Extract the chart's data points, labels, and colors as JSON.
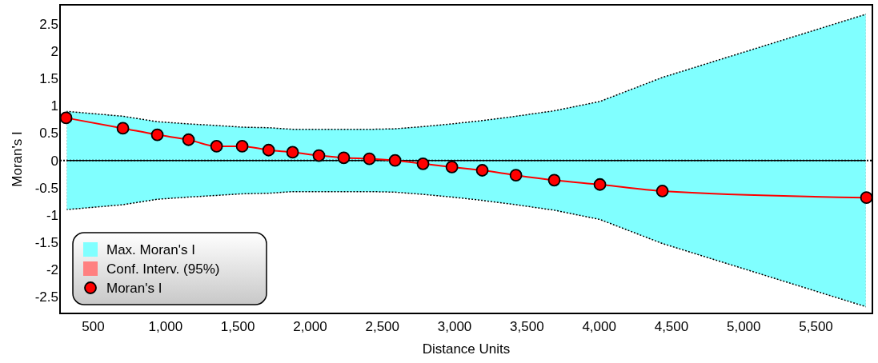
{
  "chart_data": {
    "type": "area",
    "xlabel": "Distance Units",
    "ylabel": "Moran's I",
    "xlim": [
      270,
      5890
    ],
    "ylim": [
      -2.8,
      2.85
    ],
    "xticks": [
      500,
      {
        "value": 1000,
        "label": "1,000"
      },
      {
        "value": 1500,
        "label": "1,500"
      },
      {
        "value": 2000,
        "label": "2,000"
      },
      {
        "value": 2500,
        "label": "2,500"
      },
      {
        "value": 3000,
        "label": "3,000"
      },
      {
        "value": 3500,
        "label": "3,500"
      },
      {
        "value": 4000,
        "label": "4,000"
      },
      {
        "value": 4500,
        "label": "4,500"
      },
      {
        "value": 5000,
        "label": "5,000"
      },
      {
        "value": 5500,
        "label": "5,500"
      }
    ],
    "yticks": [
      -2.5,
      -2,
      -1.5,
      -1,
      -0.5,
      0,
      0.5,
      1,
      1.5,
      2,
      2.5
    ],
    "x": [
      312,
      705,
      943,
      1159,
      1353,
      1530,
      1713,
      1879,
      2061,
      2233,
      2410,
      2588,
      2781,
      2981,
      3191,
      3424,
      3689,
      4005,
      4437,
      5849
    ],
    "grid": false,
    "legend": "bottom left",
    "ref_lines": [
      {
        "axis": "y",
        "value": 0,
        "color": "#000000",
        "line_style": "dotted"
      }
    ],
    "series": [
      {
        "name": "Max. Moran's I",
        "color": "#80ffff",
        "line_style": "dotted",
        "values": [
          0.9,
          0.81,
          0.71,
          0.67,
          0.64,
          0.61,
          0.6,
          0.57,
          0.57,
          0.57,
          0.57,
          0.58,
          0.62,
          0.67,
          0.73,
          0.81,
          0.91,
          1.08,
          1.52,
          2.68
        ]
      },
      {
        "color": "#80ffff",
        "line_style": "dotted",
        "values": [
          -0.9,
          -0.81,
          -0.71,
          -0.67,
          -0.64,
          -0.61,
          -0.6,
          -0.57,
          -0.57,
          -0.57,
          -0.57,
          -0.58,
          -0.62,
          -0.67,
          -0.73,
          -0.81,
          -0.91,
          -1.08,
          -1.52,
          -2.68
        ]
      },
      {
        "name": "Conf. Interv. (95%)",
        "type": "area",
        "color": "#ff8080",
        "values": [
          null,
          null,
          null,
          null,
          null,
          null,
          null,
          null,
          null,
          null,
          null,
          null,
          null,
          null,
          null,
          null,
          null,
          null,
          null,
          null
        ]
      },
      {
        "name": "Moran's I",
        "type": "line",
        "color": "#ff0000",
        "marker": "circle",
        "line_style": "solid",
        "values": [
          0.78,
          0.59,
          0.47,
          0.38,
          0.26,
          0.26,
          0.19,
          0.15,
          0.09,
          0.05,
          0.03,
          0,
          -0.06,
          -0.12,
          -0.18,
          -0.27,
          -0.36,
          -0.44,
          -0.56,
          -0.68
        ]
      }
    ]
  }
}
